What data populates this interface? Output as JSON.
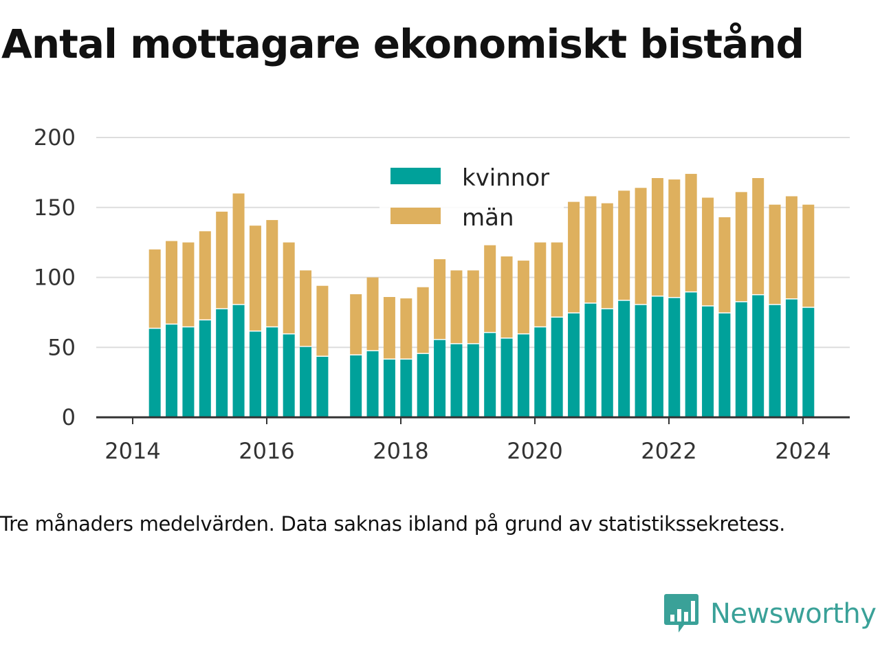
{
  "title": "Antal mottagare ekonomiskt bistånd",
  "note": "Tre månaders medelvärden. Data saknas ibland på grund av statistikssekretess.",
  "brand": {
    "name": "Newsworthy",
    "icon": "newsworthy-logo-icon",
    "color": "#3aa198"
  },
  "colors": {
    "kvinnor": "#00a19a",
    "man": "#deb05e",
    "grid": "#dddddd",
    "axis": "#333333"
  },
  "chart_data": {
    "type": "bar",
    "stacked": true,
    "x_tick_labels": [
      "2014",
      "2016",
      "2018",
      "2020",
      "2022",
      "2024"
    ],
    "x_ticks": [
      2014,
      2016,
      2018,
      2020,
      2022,
      2024
    ],
    "xlim": [
      2013.5,
      2024.75
    ],
    "y_tick_labels": [
      "0",
      "50",
      "100",
      "150",
      "200"
    ],
    "y_ticks": [
      0,
      50,
      100,
      150,
      200
    ],
    "ylim": [
      0,
      200
    ],
    "grid": true,
    "legend": {
      "position": "top-center",
      "labels": [
        "kvinnor",
        "män"
      ]
    },
    "x": [
      2014.33,
      2014.58,
      2014.83,
      2015.08,
      2015.33,
      2015.58,
      2015.83,
      2016.08,
      2016.33,
      2016.58,
      2016.83,
      2017.33,
      2017.58,
      2017.83,
      2018.08,
      2018.33,
      2018.58,
      2018.83,
      2019.08,
      2019.33,
      2019.58,
      2019.83,
      2020.08,
      2020.33,
      2020.58,
      2020.83,
      2021.08,
      2021.33,
      2021.58,
      2021.83,
      2022.08,
      2022.33,
      2022.58,
      2022.83,
      2023.08,
      2023.33,
      2023.58,
      2023.83,
      2024.08
    ],
    "series": [
      {
        "name": "kvinnor",
        "values": [
          64,
          67,
          65,
          70,
          78,
          81,
          62,
          65,
          60,
          51,
          44,
          45,
          48,
          42,
          42,
          46,
          56,
          53,
          53,
          61,
          57,
          60,
          65,
          72,
          75,
          82,
          78,
          84,
          81,
          87,
          86,
          90,
          80,
          75,
          83,
          88,
          81,
          85,
          79
        ]
      },
      {
        "name": "män",
        "values": [
          56,
          59,
          60,
          63,
          69,
          79,
          75,
          76,
          65,
          54,
          50,
          43,
          52,
          44,
          43,
          47,
          57,
          52,
          52,
          62,
          58,
          52,
          60,
          53,
          79,
          76,
          75,
          78,
          83,
          84,
          84,
          84,
          77,
          68,
          78,
          83,
          71,
          73,
          73
        ]
      }
    ]
  }
}
